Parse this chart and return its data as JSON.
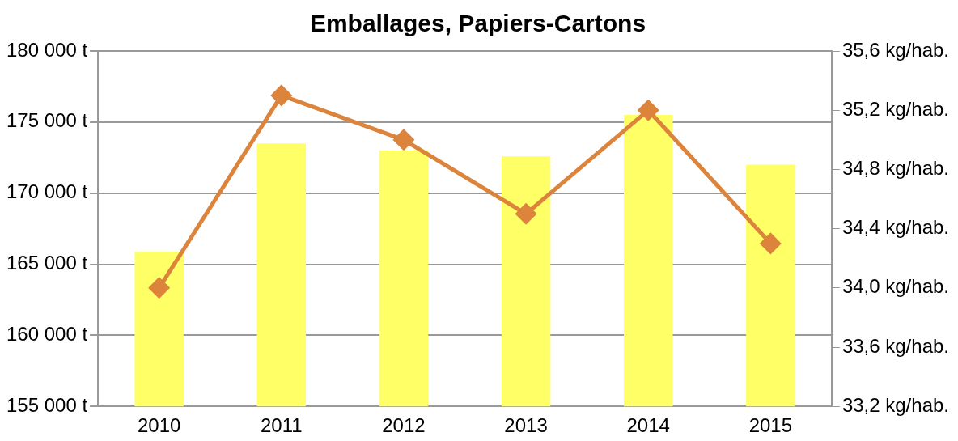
{
  "chart_data": {
    "type": "bar",
    "title": "Emballages, Papiers-Cartons",
    "categories": [
      "2010",
      "2011",
      "2012",
      "2013",
      "2014",
      "2015"
    ],
    "series": [
      {
        "color": "#ffff66",
        "values": [
          165900,
          173500,
          173000,
          172600,
          175500,
          172000
        ]
      },
      {
        "type": "line",
        "axis": "y2",
        "color": "#dd843c",
        "marker": "diamond",
        "values": [
          34.0,
          35.3,
          35.0,
          34.5,
          35.2,
          34.3
        ]
      }
    ],
    "ylim": [
      155000,
      180000
    ],
    "yticks": [
      {
        "value": 155000,
        "label": "155 000 t"
      },
      {
        "value": 160000,
        "label": "160 000 t"
      },
      {
        "value": 165000,
        "label": "165 000 t"
      },
      {
        "value": 170000,
        "label": "170 000 t"
      },
      {
        "value": 175000,
        "label": "175 000 t"
      },
      {
        "value": 180000,
        "label": "180 000 t"
      }
    ],
    "y2lim": [
      33.2,
      35.6
    ],
    "y2ticks": [
      {
        "value": 33.2,
        "label": "33,2 kg/hab."
      },
      {
        "value": 33.6,
        "label": "33,6 kg/hab."
      },
      {
        "value": 34.0,
        "label": "34,0 kg/hab."
      },
      {
        "value": 34.4,
        "label": "34,4 kg/hab."
      },
      {
        "value": 34.8,
        "label": "34,8 kg/hab."
      },
      {
        "value": 35.2,
        "label": "35,2 kg/hab."
      },
      {
        "value": 35.6,
        "label": "35,6 kg/hab."
      }
    ],
    "grid": "y",
    "legend": false
  }
}
